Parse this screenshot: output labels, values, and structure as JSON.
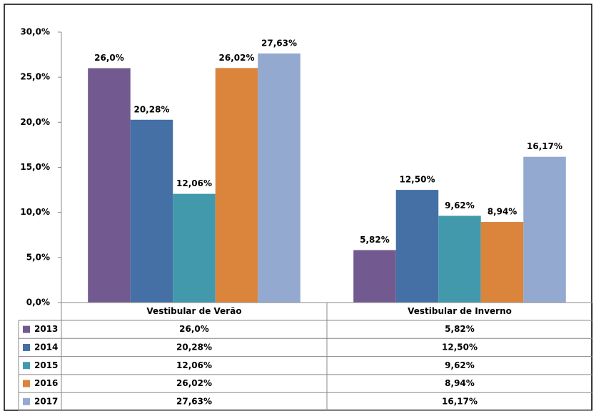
{
  "chart_data": {
    "type": "bar",
    "categories": [
      "Vestibular de Verão",
      "Vestibular de Inverno"
    ],
    "series": [
      {
        "name": "2013",
        "color": "#72598f",
        "values": [
          26.0,
          5.82
        ],
        "value_labels": [
          "26,0%",
          "5,82%"
        ]
      },
      {
        "name": "2014",
        "color": "#4470a5",
        "values": [
          20.28,
          12.5
        ],
        "value_labels": [
          "20,28%",
          "12,50%"
        ]
      },
      {
        "name": "2015",
        "color": "#4299ac",
        "values": [
          12.06,
          9.62
        ],
        "value_labels": [
          "12,06%",
          "9,62%"
        ]
      },
      {
        "name": "2016",
        "color": "#db843c",
        "values": [
          26.02,
          8.94
        ],
        "value_labels": [
          "26,02%",
          "8,94%"
        ]
      },
      {
        "name": "2017",
        "color": "#93a9cf",
        "values": [
          27.63,
          16.17
        ],
        "value_labels": [
          "27,63%",
          "16,17%"
        ]
      }
    ],
    "ylim": [
      0,
      30
    ],
    "yticks": [
      {
        "value": 0,
        "label": "0,0%"
      },
      {
        "value": 5,
        "label": "5,0%"
      },
      {
        "value": 10,
        "label": "10,0%"
      },
      {
        "value": 15,
        "label": "15,0%"
      },
      {
        "value": 20,
        "label": "20,0%"
      },
      {
        "value": 25,
        "label": "25,0%"
      },
      {
        "value": 30,
        "label": "30,0%"
      }
    ],
    "grid": false,
    "data_table": true
  }
}
